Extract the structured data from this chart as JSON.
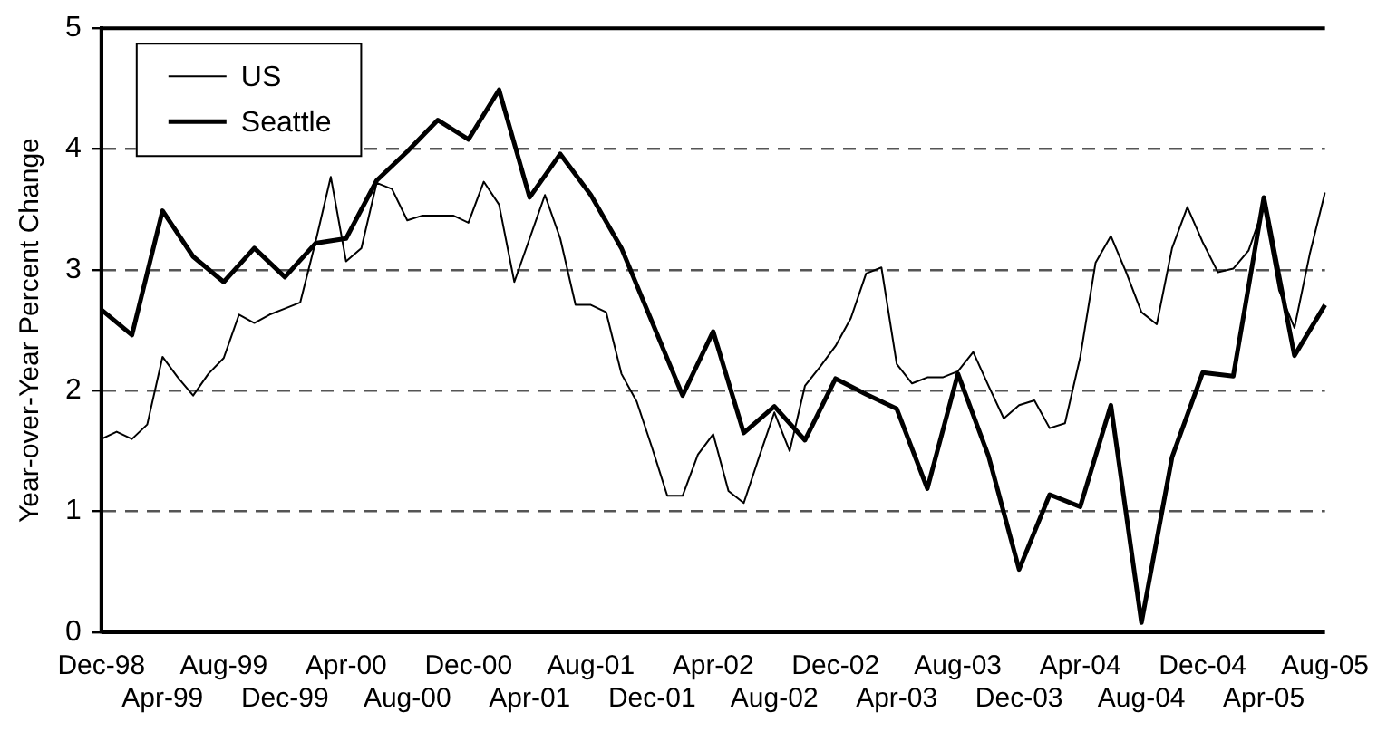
{
  "chart_data": {
    "type": "line",
    "ylabel": "Year-over-Year Percent Change",
    "categories": [
      "Dec-98",
      null,
      null,
      null,
      "Apr-99",
      null,
      null,
      null,
      "Aug-99",
      null,
      null,
      null,
      "Dec-99",
      null,
      null,
      null,
      "Apr-00",
      null,
      null,
      null,
      "Aug-00",
      null,
      null,
      null,
      "Dec-00",
      null,
      null,
      null,
      "Apr-01",
      null,
      null,
      null,
      "Aug-01",
      null,
      null,
      null,
      "Dec-01",
      null,
      null,
      null,
      "Apr-02",
      null,
      null,
      null,
      "Aug-02",
      null,
      null,
      null,
      "Dec-02",
      null,
      null,
      null,
      "Apr-03",
      null,
      null,
      null,
      "Aug-03",
      null,
      null,
      null,
      "Dec-03",
      null,
      null,
      null,
      "Apr-04",
      null,
      null,
      null,
      "Aug-04",
      null,
      null,
      null,
      "Dec-04",
      null,
      null,
      null,
      "Apr-05",
      null,
      null,
      null,
      "Aug-05"
    ],
    "series": [
      {
        "name": "US",
        "color": "#000000",
        "values": [
          1.6,
          1.66,
          1.6,
          1.72,
          2.28,
          2.11,
          1.96,
          2.14,
          2.27,
          2.63,
          2.56,
          2.63,
          2.68,
          2.73,
          3.23,
          3.77,
          3.07,
          3.18,
          3.72,
          3.67,
          3.41,
          3.45,
          3.45,
          3.45,
          3.39,
          3.73,
          3.54,
          2.9,
          3.26,
          3.62,
          3.26,
          2.71,
          2.71,
          2.65,
          2.14,
          1.91,
          1.53,
          1.13,
          1.13,
          1.47,
          1.64,
          1.17,
          1.07,
          1.45,
          1.82,
          1.5,
          2.04,
          2.2,
          2.37,
          2.6,
          2.97,
          3.02,
          2.22,
          2.06,
          2.11,
          2.11,
          2.16,
          2.32,
          2.04,
          1.77,
          1.88,
          1.92,
          1.69,
          1.73,
          2.28,
          3.06,
          3.28,
          2.98,
          2.65,
          2.55,
          3.18,
          3.52,
          3.23,
          2.98,
          3.01,
          3.16,
          3.52,
          2.83,
          2.52,
          3.13,
          3.64
        ]
      },
      {
        "name": "Seattle",
        "color": "#000000",
        "values": [
          2.67,
          null,
          2.46,
          null,
          3.49,
          null,
          3.11,
          null,
          2.9,
          null,
          3.18,
          null,
          2.94,
          null,
          3.22,
          null,
          3.26,
          null,
          3.74,
          null,
          3.98,
          null,
          4.24,
          null,
          4.08,
          null,
          4.49,
          null,
          3.6,
          null,
          3.96,
          null,
          3.62,
          null,
          3.18,
          null,
          2.57,
          null,
          1.96,
          null,
          2.49,
          null,
          1.65,
          null,
          1.87,
          null,
          1.59,
          null,
          2.1,
          null,
          1.97,
          null,
          1.85,
          null,
          1.19,
          null,
          2.14,
          null,
          1.46,
          null,
          0.52,
          null,
          1.14,
          null,
          1.04,
          null,
          1.88,
          null,
          0.08,
          null,
          1.45,
          null,
          2.15,
          null,
          2.12,
          null,
          3.6,
          null,
          2.29,
          null,
          2.71
        ]
      }
    ],
    "ylim": [
      0,
      5
    ],
    "yticks": [
      0,
      1,
      2,
      3,
      4,
      5
    ],
    "grid": "y",
    "legend": "top left",
    "marker": "none",
    "line_style": "solid"
  }
}
